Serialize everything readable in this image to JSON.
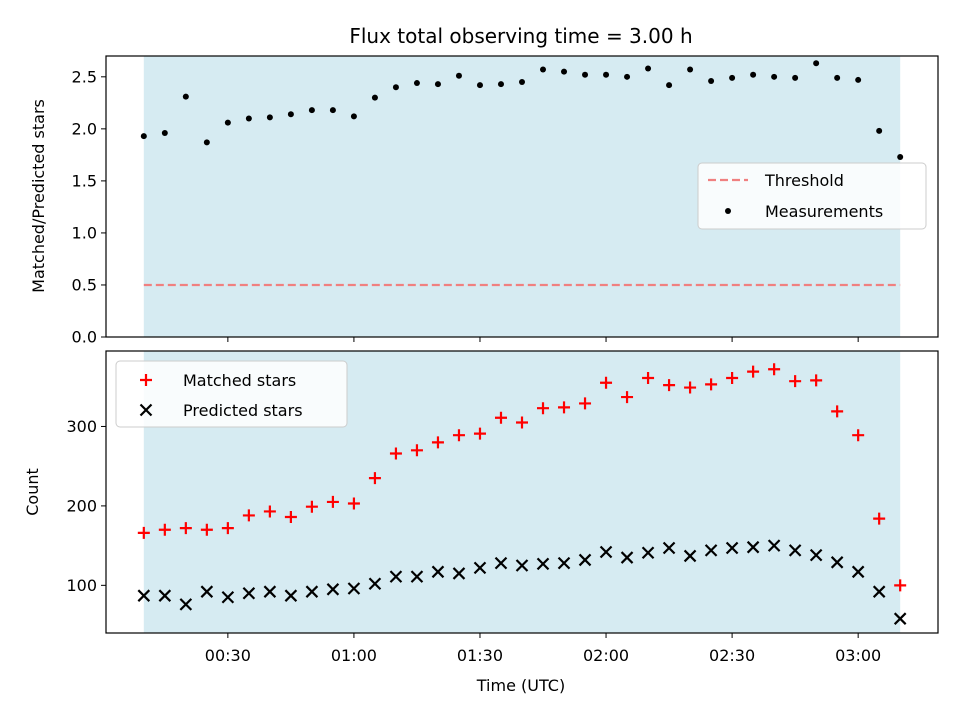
{
  "chart_data": [
    {
      "type": "scatter",
      "title": "Flux total observing time = 3.00 h",
      "xlabel": "",
      "ylabel": "Matched/Predicted stars",
      "ylim": [
        0,
        2.7
      ],
      "yticks": [
        "0.0",
        "0.5",
        "1.0",
        "1.5",
        "2.0",
        "2.5"
      ],
      "shaded_band": {
        "x_start": "00:10",
        "x_end": "03:10",
        "color": "#add8e6"
      },
      "threshold": {
        "name": "Threshold",
        "y": 0.5,
        "color": "#f08080",
        "style": "dashed"
      },
      "legend": {
        "placement": "center-right",
        "entries": [
          "Threshold",
          "Measurements"
        ]
      },
      "series": [
        {
          "name": "Measurements",
          "color": "#000000",
          "marker": "dot",
          "x": [
            "00:10",
            "00:15",
            "00:20",
            "00:25",
            "00:30",
            "00:35",
            "00:40",
            "00:45",
            "00:50",
            "00:55",
            "01:00",
            "01:05",
            "01:10",
            "01:15",
            "01:20",
            "01:25",
            "01:30",
            "01:35",
            "01:40",
            "01:45",
            "01:50",
            "01:55",
            "02:00",
            "02:05",
            "02:10",
            "02:15",
            "02:20",
            "02:25",
            "02:30",
            "02:35",
            "02:40",
            "02:45",
            "02:50",
            "02:55",
            "03:00",
            "03:05",
            "03:10"
          ],
          "y": [
            1.93,
            1.96,
            2.31,
            1.87,
            2.06,
            2.1,
            2.11,
            2.14,
            2.18,
            2.18,
            2.12,
            2.3,
            2.4,
            2.44,
            2.43,
            2.51,
            2.42,
            2.43,
            2.45,
            2.57,
            2.55,
            2.52,
            2.52,
            2.5,
            2.58,
            2.42,
            2.57,
            2.46,
            2.49,
            2.52,
            2.5,
            2.49,
            2.63,
            2.49,
            2.47,
            1.98,
            1.73
          ]
        }
      ]
    },
    {
      "type": "scatter",
      "title": "",
      "xlabel": "Time (UTC)",
      "ylabel": "Count",
      "xlim": [
        "00:01",
        "03:19"
      ],
      "ylim": [
        40,
        395
      ],
      "yticks": [
        "100",
        "200",
        "300"
      ],
      "xticks": [
        "00:30",
        "01:00",
        "01:30",
        "02:00",
        "02:30",
        "03:00"
      ],
      "shaded_band": {
        "x_start": "00:10",
        "x_end": "03:10",
        "color": "#add8e6"
      },
      "legend": {
        "placement": "top-left",
        "entries": [
          "Matched stars",
          "Predicted stars"
        ]
      },
      "series": [
        {
          "name": "Matched stars",
          "color": "#ff0000",
          "marker": "plus",
          "x": [
            "00:10",
            "00:15",
            "00:20",
            "00:25",
            "00:30",
            "00:35",
            "00:40",
            "00:45",
            "00:50",
            "00:55",
            "01:00",
            "01:05",
            "01:10",
            "01:15",
            "01:20",
            "01:25",
            "01:30",
            "01:35",
            "01:40",
            "01:45",
            "01:50",
            "01:55",
            "02:00",
            "02:05",
            "02:10",
            "02:15",
            "02:20",
            "02:25",
            "02:30",
            "02:35",
            "02:40",
            "02:45",
            "02:50",
            "02:55",
            "03:00",
            "03:05",
            "03:10"
          ],
          "y": [
            166,
            170,
            172,
            170,
            172,
            188,
            193,
            186,
            199,
            205,
            203,
            235,
            266,
            270,
            280,
            289,
            291,
            311,
            305,
            323,
            324,
            329,
            355,
            337,
            361,
            352,
            349,
            353,
            361,
            369,
            372,
            357,
            358,
            319,
            289,
            184,
            100
          ]
        },
        {
          "name": "Predicted stars",
          "color": "#000000",
          "marker": "x",
          "x": [
            "00:10",
            "00:15",
            "00:20",
            "00:25",
            "00:30",
            "00:35",
            "00:40",
            "00:45",
            "00:50",
            "00:55",
            "01:00",
            "01:05",
            "01:10",
            "01:15",
            "01:20",
            "01:25",
            "01:30",
            "01:35",
            "01:40",
            "01:45",
            "01:50",
            "01:55",
            "02:00",
            "02:05",
            "02:10",
            "02:15",
            "02:20",
            "02:25",
            "02:30",
            "02:35",
            "02:40",
            "02:45",
            "02:50",
            "02:55",
            "03:00",
            "03:05",
            "03:10"
          ],
          "y": [
            87,
            87,
            76,
            92,
            85,
            90,
            92,
            87,
            92,
            95,
            96,
            102,
            111,
            111,
            117,
            115,
            122,
            128,
            125,
            127,
            128,
            132,
            142,
            135,
            141,
            147,
            137,
            144,
            147,
            148,
            150,
            144,
            138,
            129,
            117,
            92,
            58
          ]
        }
      ]
    }
  ]
}
